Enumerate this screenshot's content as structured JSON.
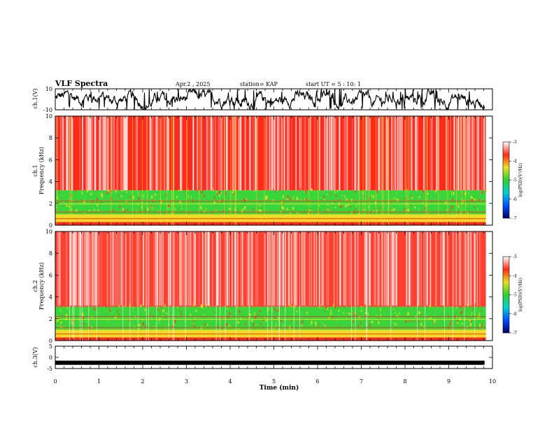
{
  "header": {
    "title": "VLF Spectra",
    "date": "Apr.2 , 2025",
    "station": "station= KAP",
    "start": "start UT = 5 : 10: 1"
  },
  "chart_data": [
    {
      "type": "line",
      "name": "ch1-waveform",
      "ylabel": "ch.1(V)",
      "ylim": [
        -10,
        10
      ],
      "yticks": [
        "10",
        "-10"
      ],
      "xlim": [
        0,
        10
      ],
      "description_values": "noisy waveform, amplitude mostly -5 to 8 V, ends near 9.8 min"
    },
    {
      "type": "heatmap",
      "name": "ch1-spectrogram",
      "ylabel": "ch.1 Frequency (kHz)",
      "ylim": [
        0,
        10
      ],
      "yticks": [
        "0",
        "2",
        "4",
        "6",
        "8",
        "10"
      ],
      "xlim": [
        0,
        10
      ],
      "data_extent_min": 9.85,
      "bands": [
        {
          "from_khz": 0,
          "to_khz": 0.3,
          "color": "#ff2a1a"
        },
        {
          "from_khz": 0.3,
          "to_khz": 1.0,
          "color": "#f0d820"
        },
        {
          "from_khz": 1.0,
          "to_khz": 3.2,
          "color": "#38d63a"
        },
        {
          "from_khz": 3.2,
          "to_khz": 10,
          "color": "#ff2a1a"
        }
      ]
    },
    {
      "type": "heatmap",
      "name": "ch2-spectrogram",
      "ylabel": "ch.2 Frequency (kHz)",
      "ylim": [
        0,
        10
      ],
      "yticks": [
        "0",
        "2",
        "4",
        "6",
        "8",
        "10"
      ],
      "xlim": [
        0,
        10
      ],
      "data_extent_min": 9.85,
      "bands": [
        {
          "from_khz": 0,
          "to_khz": 0.3,
          "color": "#ff2a1a"
        },
        {
          "from_khz": 0.3,
          "to_khz": 1.0,
          "color": "#f0d820"
        },
        {
          "from_khz": 1.0,
          "to_khz": 3.1,
          "color": "#38d63a"
        },
        {
          "from_khz": 3.1,
          "to_khz": 10,
          "color": "#ff4030"
        }
      ]
    },
    {
      "type": "line",
      "name": "ch3-waveform",
      "ylabel": "ch.3(V)",
      "ylim": [
        -5,
        5
      ],
      "yticks": [
        "5",
        "0",
        "-5"
      ],
      "xlim": [
        0,
        10
      ],
      "level_v": -2.4
    }
  ],
  "x_axis": {
    "label": "Time (min)",
    "ticks": [
      "0",
      "1",
      "2",
      "3",
      "4",
      "5",
      "6",
      "7",
      "8",
      "9",
      "10"
    ]
  },
  "colorbar": {
    "label": "log(PSD)(V²/Hz)",
    "ticks": [
      "-3",
      "-4",
      "-5",
      "-6",
      "-7"
    ],
    "range": [
      -7,
      -3
    ],
    "stops": [
      "#000060",
      "#0050ff",
      "#00d0d0",
      "#30d030",
      "#e8e020",
      "#ff2a1a",
      "#ffffff"
    ]
  }
}
